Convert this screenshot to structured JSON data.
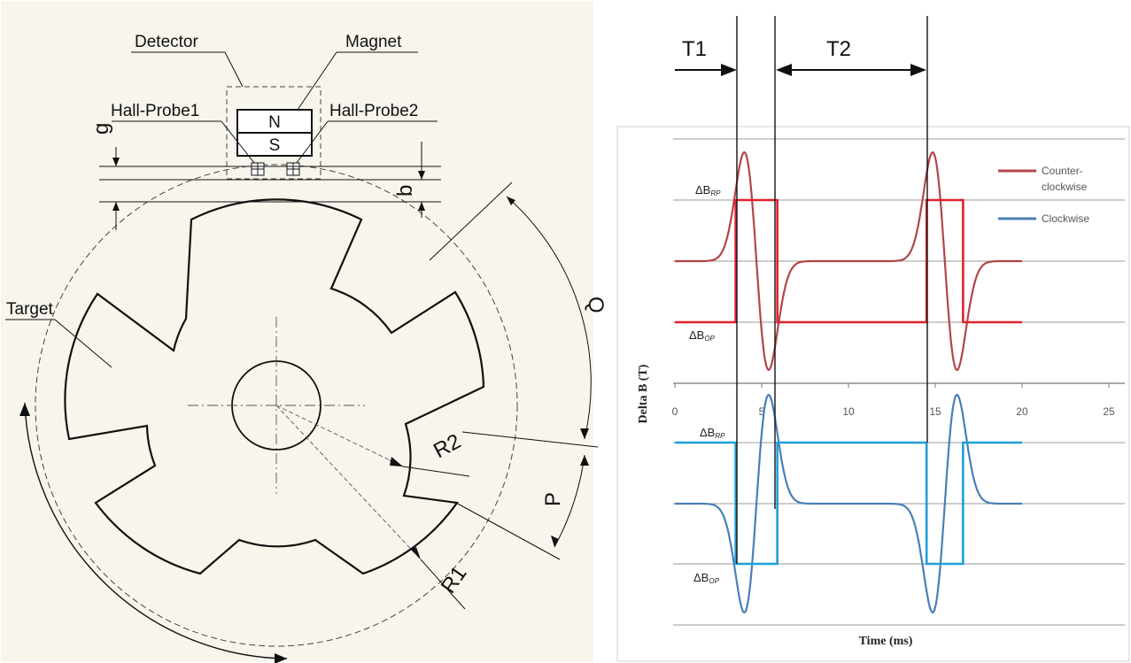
{
  "mechanism": {
    "labels": {
      "detector": "Detector",
      "magnet": "Magnet",
      "hall_probe_1": "Hall-Probe1",
      "hall_probe_2": "Hall-Probe2",
      "target": "Target",
      "pole_n": "N",
      "pole_s": "S",
      "dim_g": "g",
      "dim_b": "b",
      "dim_q": "Q",
      "dim_p": "P",
      "dim_r1": "R1",
      "dim_r2": "R2"
    }
  },
  "timing": {
    "t1": "T1",
    "t2": "T2"
  },
  "chart_data": {
    "type": "line",
    "xlabel": "Time (ms)",
    "ylabel": "Delta B (T)",
    "xlim": [
      0,
      25
    ],
    "xticks": [
      0,
      5,
      10,
      15,
      20,
      25
    ],
    "legend": [
      "Counter-clockwise",
      "Clockwise"
    ],
    "legend_placement": "top-right",
    "thresholds": {
      "rp": "ΔB",
      "rp_sub": "RP",
      "op": "ΔB",
      "op_sub": "OP"
    },
    "colors": {
      "ccw_curve": "#b0464a",
      "ccw_square": "#e0222c",
      "cw_curve": "#4a7fb5",
      "cw_square": "#1ea0d8"
    },
    "series": [
      {
        "name": "Counter-clockwise",
        "edges": [
          3.5,
          5.9,
          14.5,
          16.6
        ]
      },
      {
        "name": "Clockwise",
        "edges": [
          3.5,
          5.9,
          14.5,
          16.6
        ]
      }
    ]
  }
}
